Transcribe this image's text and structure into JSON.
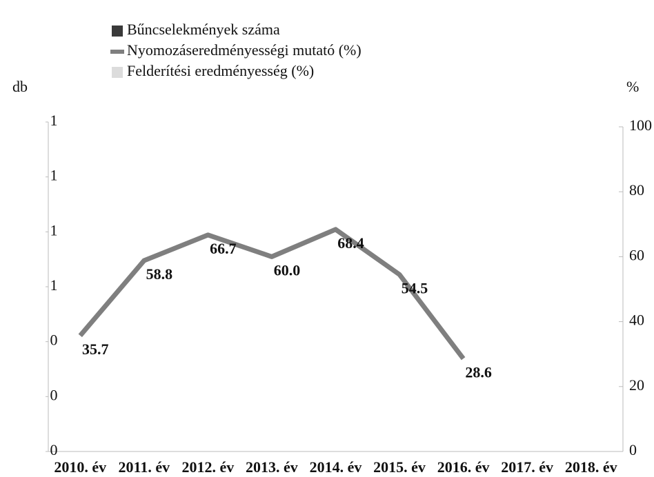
{
  "chart_data": {
    "type": "line",
    "y_label": "db",
    "y2_label": "%",
    "categories": [
      "2010. év",
      "2011. év",
      "2012. év",
      "2013. év",
      "2014. év",
      "2015. év",
      "2016. év",
      "2017. év",
      "2018. év"
    ],
    "series": [
      {
        "name": "Bűncselekmények száma",
        "color": "#3a3a3a",
        "values": [
          null,
          null,
          null,
          null,
          null,
          null,
          null,
          null,
          null
        ]
      },
      {
        "name": "Nyomozáseredményességi mutató (%)",
        "color": "#7f7f7f",
        "axis": "y2",
        "values": [
          35.7,
          58.8,
          66.7,
          60.0,
          68.4,
          54.5,
          28.6,
          null,
          null
        ],
        "value_labels": [
          "35.7",
          "58.8",
          "66.7",
          "60.0",
          "68.4",
          "54.5",
          "28.6",
          null,
          null
        ]
      },
      {
        "name": "Felderítési eredményesség (%)",
        "color": "#dcdcdc",
        "axis": "y2",
        "values": [
          null,
          null,
          null,
          null,
          null,
          null,
          null,
          null,
          null
        ]
      }
    ],
    "ylim": [
      0,
      1.2
    ],
    "yticks": [
      0,
      {
        "value": 0.2,
        "label": "0"
      },
      {
        "value": 0.4,
        "label": "0"
      },
      {
        "value": 0.6,
        "label": "1"
      },
      {
        "value": 0.8,
        "label": "1"
      },
      1,
      {
        "value": 1.2,
        "label": "1"
      }
    ],
    "y2lim": [
      0,
      100
    ],
    "y2ticks": [
      0,
      20,
      40,
      60,
      80,
      100
    ],
    "legend": "top-left"
  }
}
